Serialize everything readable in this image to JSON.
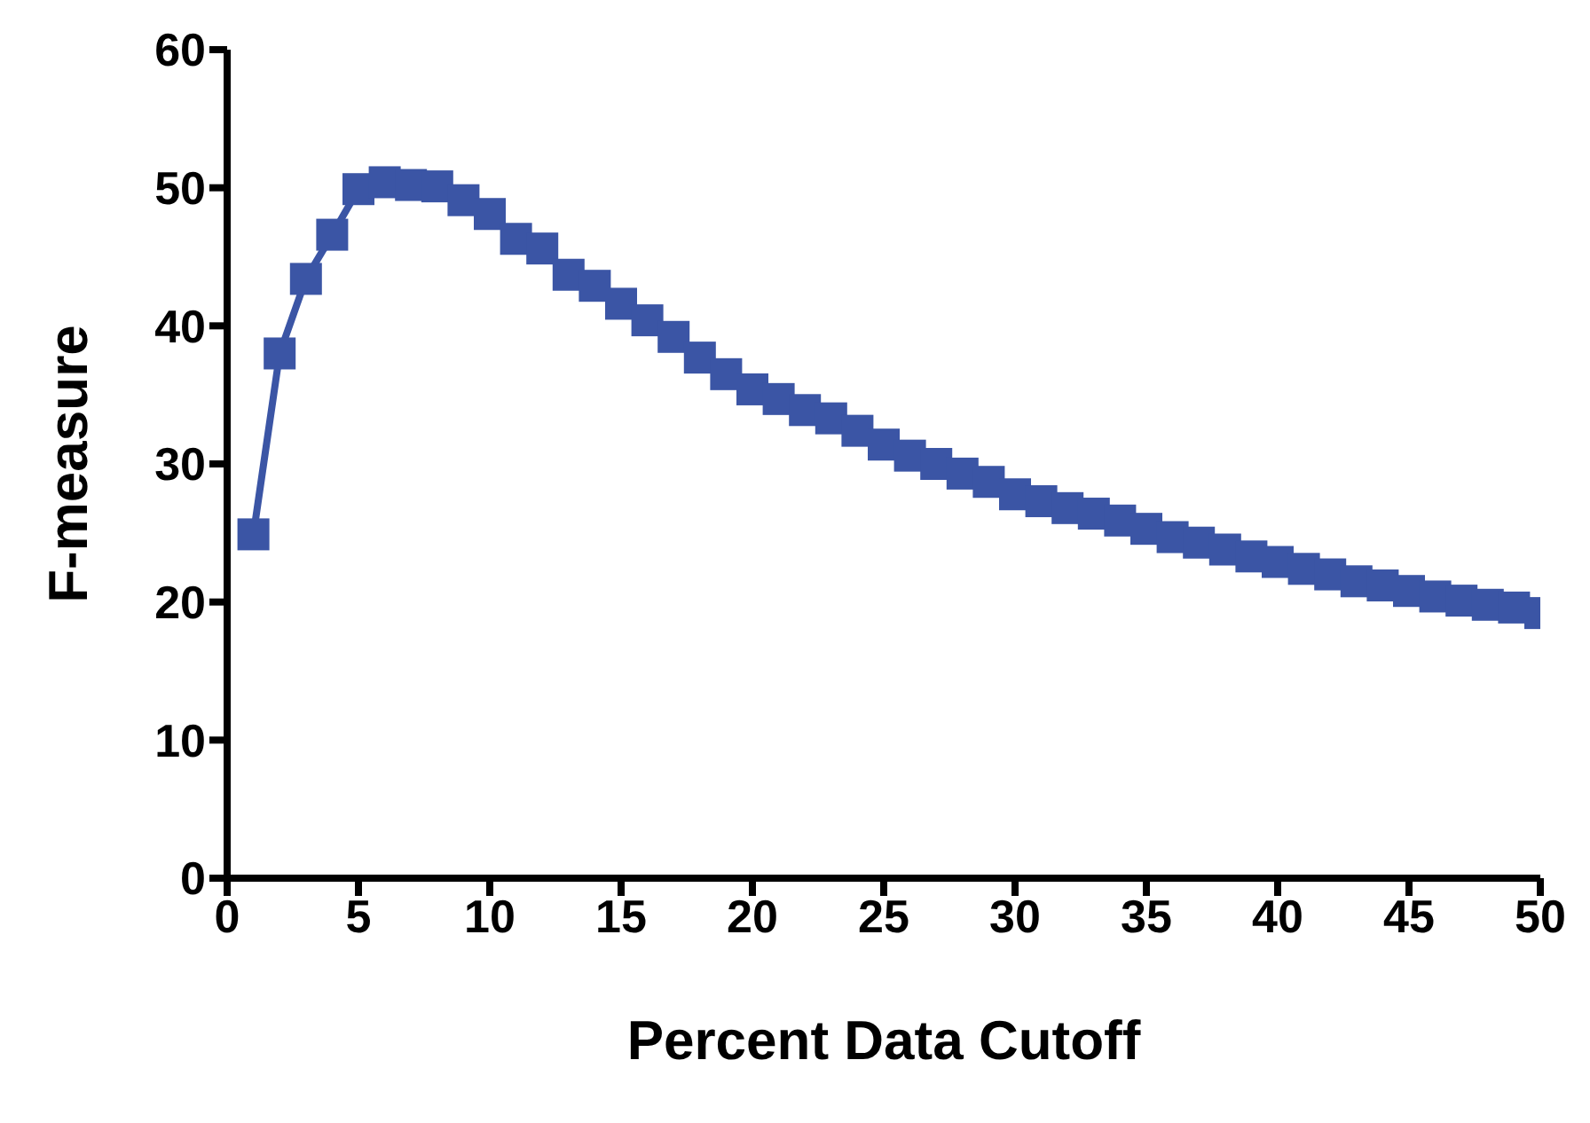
{
  "chart_data": {
    "type": "line",
    "xlabel": "Percent Data Cutoff",
    "ylabel": "F-measure",
    "x": [
      1,
      2,
      3,
      4,
      5,
      6,
      7,
      8,
      9,
      10,
      11,
      12,
      13,
      14,
      15,
      16,
      17,
      18,
      19,
      20,
      21,
      22,
      23,
      24,
      25,
      26,
      27,
      28,
      29,
      30,
      31,
      32,
      33,
      34,
      35,
      36,
      37,
      38,
      39,
      40,
      41,
      42,
      43,
      44,
      45,
      46,
      47,
      48,
      49,
      50
    ],
    "series": [
      {
        "color": "#3b55a5",
        "values": [
          24.9,
          38.0,
          43.4,
          46.6,
          49.9,
          50.4,
          50.2,
          50.1,
          49.1,
          48.1,
          46.3,
          45.6,
          43.7,
          42.9,
          41.6,
          40.4,
          39.2,
          37.7,
          36.5,
          35.4,
          34.7,
          33.9,
          33.3,
          32.4,
          31.4,
          30.6,
          30.0,
          29.3,
          28.7,
          27.8,
          27.3,
          26.8,
          26.4,
          25.9,
          25.3,
          24.7,
          24.3,
          23.8,
          23.3,
          22.9,
          22.4,
          22.0,
          21.5,
          21.2,
          20.8,
          20.4,
          20.1,
          19.8,
          19.6,
          19.2
        ]
      }
    ],
    "xlim": [
      0,
      50
    ],
    "xticks": [
      0,
      5,
      10,
      15,
      20,
      25,
      30,
      35,
      40,
      45,
      50
    ],
    "ylim": [
      0,
      60
    ],
    "yticks": [
      0,
      10,
      20,
      30,
      40,
      50,
      60
    ],
    "grid": false,
    "legend": false,
    "marker": "square",
    "line_style": "solid"
  }
}
